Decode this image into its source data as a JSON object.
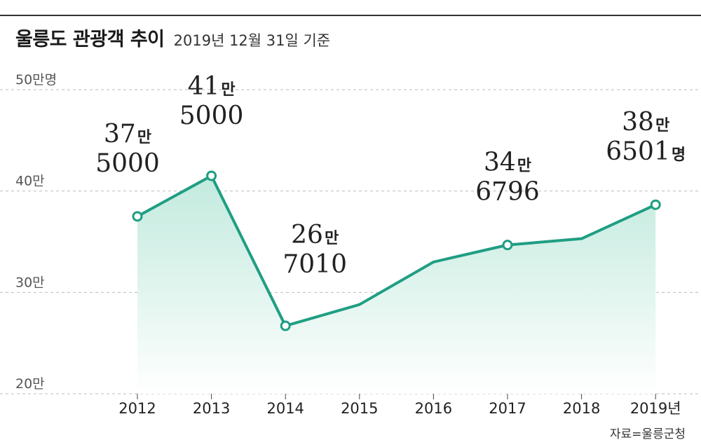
{
  "header": {
    "title": "울릉도 관광객 추이",
    "subtitle": "2019년 12월 31일 기준"
  },
  "source": "자료=울릉군청",
  "colors": {
    "line": "#1f9e83",
    "area_top": "#bfe9dc",
    "area_bottom": "#ffffff",
    "marker_fill": "#ffffff"
  },
  "chart_data": {
    "type": "area",
    "title": "울릉도 관광객 추이",
    "subtitle": "2019년 12월 31일 기준",
    "x": [
      "2012",
      "2013",
      "2014",
      "2015",
      "2016",
      "2017",
      "2018",
      "2019"
    ],
    "x_tick_labels": [
      "2012",
      "2013",
      "2014",
      "2015",
      "2016",
      "2017",
      "2018",
      "2019년"
    ],
    "values": [
      375000,
      415000,
      267010,
      288000,
      330000,
      346796,
      353000,
      386501
    ],
    "y_ticks": [
      {
        "value": 200000,
        "label": "20만"
      },
      {
        "value": 300000,
        "label": "30만"
      },
      {
        "value": 400000,
        "label": "40만"
      },
      {
        "value": 500000,
        "label": "50만명"
      }
    ],
    "ylim": [
      200000,
      500000
    ],
    "grid": true,
    "annotations": [
      {
        "index": 0,
        "line1_num": "37",
        "line1_unit": "만",
        "line2": "5000",
        "line2_unit": ""
      },
      {
        "index": 1,
        "line1_num": "41",
        "line1_unit": "만",
        "line2": "5000",
        "line2_unit": ""
      },
      {
        "index": 2,
        "line1_num": "26",
        "line1_unit": "만",
        "line2": "7010",
        "line2_unit": ""
      },
      {
        "index": 5,
        "line1_num": "34",
        "line1_unit": "만",
        "line2": "6796",
        "line2_unit": ""
      },
      {
        "index": 7,
        "line1_num": "38",
        "line1_unit": "만",
        "line2": "6501",
        "line2_unit": "명"
      }
    ]
  }
}
